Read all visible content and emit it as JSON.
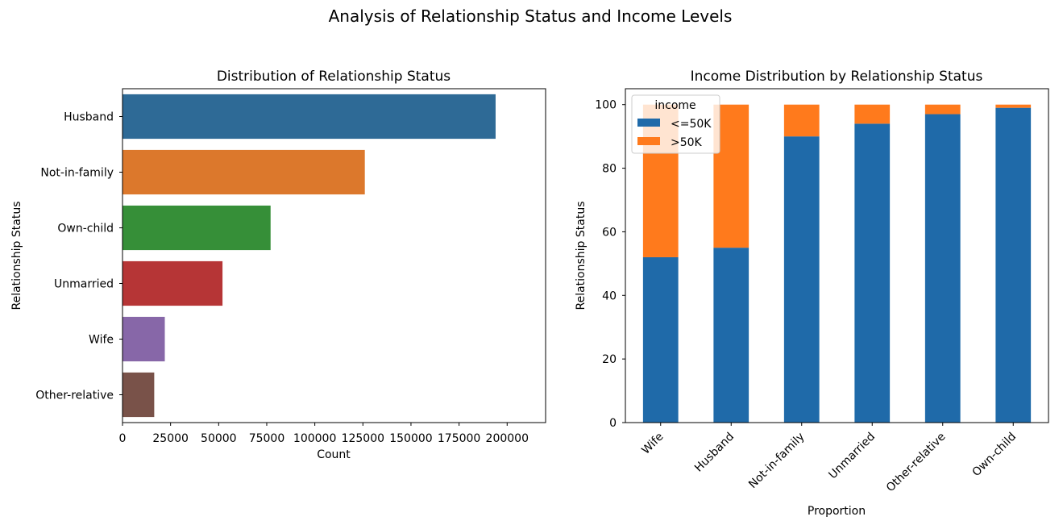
{
  "figure": {
    "title": "Analysis of Relationship Status and Income Levels"
  },
  "chart_data": [
    {
      "type": "bar",
      "orientation": "horizontal",
      "title": "Distribution of Relationship Status",
      "xlabel": "Count",
      "ylabel": "Relationship Status",
      "categories": [
        "Husband",
        "Not-in-family",
        "Own-child",
        "Unmarried",
        "Wife",
        "Other-relative"
      ],
      "values": [
        194000,
        126000,
        77000,
        52000,
        22000,
        16500
      ],
      "colors": [
        "#2e6a96",
        "#dc782c",
        "#368f38",
        "#b63536",
        "#8767a8",
        "#795249"
      ],
      "xlim": [
        0,
        220000
      ],
      "xticks": [
        0,
        25000,
        50000,
        75000,
        100000,
        125000,
        150000,
        175000,
        200000
      ],
      "xtick_labels": [
        "0",
        "25000",
        "50000",
        "75000",
        "100000",
        "125000",
        "150000",
        "175000",
        "200000"
      ]
    },
    {
      "type": "bar",
      "stacked": true,
      "title": "Income Distribution by Relationship Status",
      "xlabel": "Proportion",
      "ylabel": "Relationship Status",
      "categories": [
        "Wife",
        "Husband",
        "Not-in-family",
        "Unmarried",
        "Other-relative",
        "Own-child"
      ],
      "series": [
        {
          "name": "<=50K",
          "color": "#1f6aa9",
          "values": [
            52,
            55,
            90,
            94,
            97,
            99
          ]
        },
        {
          "name": ">50K",
          "color": "#ff7a1c",
          "values": [
            48,
            45,
            10,
            6,
            3,
            1
          ]
        }
      ],
      "ylim": [
        0,
        105
      ],
      "yticks": [
        0,
        20,
        40,
        60,
        80,
        100
      ],
      "ytick_labels": [
        "0",
        "20",
        "40",
        "60",
        "80",
        "100"
      ],
      "legend": {
        "title": "income",
        "placement": "top-left"
      }
    }
  ]
}
